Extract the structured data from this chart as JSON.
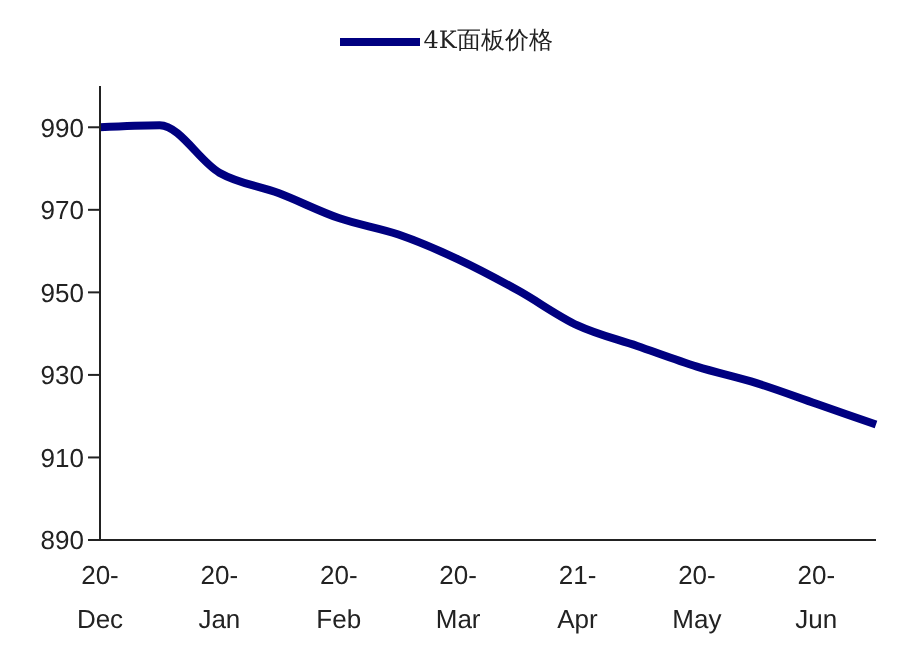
{
  "chart_data": {
    "type": "line",
    "categories": [
      "20-\nDec",
      null,
      "20-\nJan",
      null,
      "20-\nFeb",
      null,
      "20-\nMar",
      null,
      "21-\nApr",
      null,
      "20-\nMay",
      null,
      "20-\nJun",
      null
    ],
    "series": [
      {
        "name": "4K面板价格",
        "color": "#000080",
        "values": [
          990,
          990.5,
          979,
          974,
          968,
          964,
          958,
          950.5,
          942,
          937,
          932,
          928,
          923,
          918
        ]
      }
    ],
    "ylim": [
      890,
      1000
    ],
    "yticks": [
      890,
      910,
      930,
      950,
      970,
      990
    ],
    "grid": false,
    "legend": "top",
    "marker": "none",
    "line_style": "solid"
  }
}
